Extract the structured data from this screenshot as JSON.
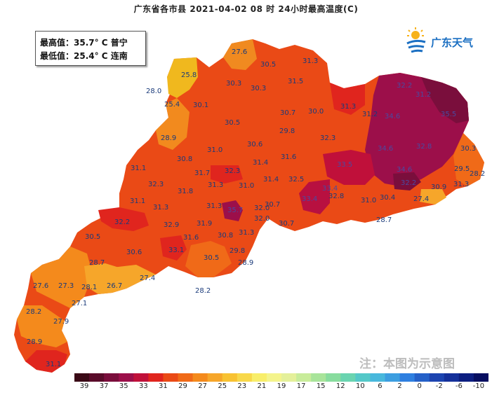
{
  "title": "广东省各市县  2021-04-02 08 时 24小时最高温度(C)",
  "summary": {
    "max_label": "最高值：35.7° C  普宁",
    "min_label": "最低值：25.4° C  连南"
  },
  "logo": {
    "text": "广东天气",
    "icon": "sun-cloud-logo-icon"
  },
  "note": "注：本图为示意图",
  "scale": {
    "colors": [
      "#3a0a16",
      "#5a0c2a",
      "#7a0e3c",
      "#9c0f4a",
      "#c0103a",
      "#e0251e",
      "#ea4a16",
      "#f06a18",
      "#f48a1c",
      "#f6a62a",
      "#f8c232",
      "#f8d84a",
      "#f8ee6a",
      "#f4f48c",
      "#e4f09a",
      "#c8ec9a",
      "#a8e49a",
      "#88dc9e",
      "#6ad4b0",
      "#54c8c8",
      "#48b8dc",
      "#3c9ee0",
      "#2e7fe0",
      "#2460c8",
      "#1c44b0",
      "#14309a",
      "#0c1e80",
      "#060e60"
    ],
    "ticks": [
      "39",
      "37",
      "35",
      "33",
      "31",
      "29",
      "27",
      "25",
      "23",
      "21",
      "19",
      "17",
      "15",
      "12",
      "10",
      "6",
      "2",
      "0",
      "-2",
      "-6",
      "-10"
    ]
  },
  "stations": [
    {
      "v": "27.6"
    },
    {
      "v": "25.8"
    },
    {
      "v": "28.0"
    },
    {
      "v": "25.4"
    },
    {
      "v": "30.5"
    },
    {
      "v": "31.3"
    },
    {
      "v": "30.3"
    },
    {
      "v": "30.3"
    },
    {
      "v": "31.5"
    },
    {
      "v": "30.1"
    },
    {
      "v": "32.2"
    },
    {
      "v": "31.2"
    },
    {
      "v": "30.7"
    },
    {
      "v": "30.0"
    },
    {
      "v": "31.3"
    },
    {
      "v": "31.2"
    },
    {
      "v": "30.5"
    },
    {
      "v": "29.8"
    },
    {
      "v": "34.6"
    },
    {
      "v": "35.5"
    },
    {
      "v": "28.9"
    },
    {
      "v": "31.0"
    },
    {
      "v": "30.6"
    },
    {
      "v": "31.6"
    },
    {
      "v": "32.3"
    },
    {
      "v": "34.6"
    },
    {
      "v": "30.8"
    },
    {
      "v": "31.4"
    },
    {
      "v": "32.8"
    },
    {
      "v": "30.3"
    },
    {
      "v": "31.1"
    },
    {
      "v": "31.7"
    },
    {
      "v": "32.3"
    },
    {
      "v": "31.4"
    },
    {
      "v": "32.5"
    },
    {
      "v": "34.6"
    },
    {
      "v": "33.5"
    },
    {
      "v": "29.5"
    },
    {
      "v": "28.2"
    },
    {
      "v": "32.3"
    },
    {
      "v": "31.8"
    },
    {
      "v": "31.3"
    },
    {
      "v": "31.0"
    },
    {
      "v": "32.2"
    },
    {
      "v": "30.9"
    },
    {
      "v": "31.3"
    },
    {
      "v": "31.1"
    },
    {
      "v": "31.3"
    },
    {
      "v": "31.3"
    },
    {
      "v": "30.7"
    },
    {
      "v": "33.4"
    },
    {
      "v": "32.8"
    },
    {
      "v": "31.0"
    },
    {
      "v": "30.4"
    },
    {
      "v": "27.4"
    },
    {
      "v": "32.2"
    },
    {
      "v": "32.9"
    },
    {
      "v": "31.9"
    },
    {
      "v": "32.0"
    },
    {
      "v": "30.7"
    },
    {
      "v": "28.7"
    },
    {
      "v": "30.5"
    },
    {
      "v": "31.6"
    },
    {
      "v": "30.8"
    },
    {
      "v": "31.3"
    },
    {
      "v": "30.6"
    },
    {
      "v": "33.1"
    },
    {
      "v": "29.8"
    },
    {
      "v": "28.7"
    },
    {
      "v": "30.5"
    },
    {
      "v": "28.9"
    },
    {
      "v": "27.6"
    },
    {
      "v": "27.3"
    },
    {
      "v": "28.1"
    },
    {
      "v": "26.7"
    },
    {
      "v": "27.4"
    },
    {
      "v": "28.2"
    },
    {
      "v": "27.1"
    },
    {
      "v": "28.2"
    },
    {
      "v": "27.9"
    },
    {
      "v": "28.9"
    },
    {
      "v": "31.1"
    },
    {
      "v": "35.7"
    },
    {
      "v": "33.4"
    },
    {
      "v": "32.0"
    }
  ]
}
